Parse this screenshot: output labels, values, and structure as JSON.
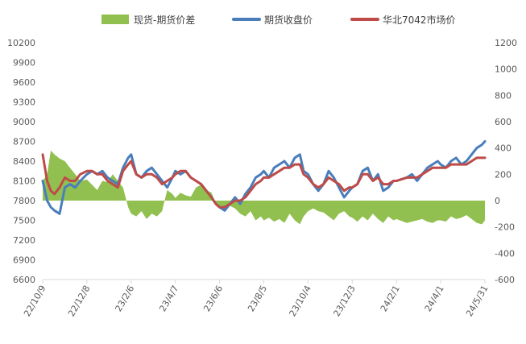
{
  "chart_data": {
    "type": "line",
    "title": "",
    "legend": {
      "placement": "top",
      "entries": [
        "现货-期货价差",
        "期货收盘价",
        "华北7042市场价"
      ]
    },
    "colors": {
      "spread": "#92C050",
      "futures": "#4A7EBB",
      "spot": "#BE4B48",
      "axis": "#D9D9D9",
      "text": "#595959"
    },
    "y_left": {
      "ticks": [
        "10200",
        "9900",
        "9600",
        "9300",
        "9000",
        "8700",
        "8400",
        "8100",
        "7800",
        "7500",
        "7200",
        "6900",
        "6600"
      ],
      "ylim": [
        6600,
        10200
      ]
    },
    "y_right": {
      "ticks": [
        "1200",
        "1000",
        "800",
        "600",
        "400",
        "200",
        "0",
        "-200",
        "-400",
        "-600"
      ],
      "ylim": [
        -600,
        1200
      ]
    },
    "x_labels": [
      "22/10/9",
      "22/12/8",
      "23/2/6",
      "23/4/7",
      "23/6/6",
      "23/8/5",
      "23/10/4",
      "23/12/3",
      "24/2/1",
      "24/4/1",
      "24/5/31"
    ],
    "x_range": [
      "2022-10-09",
      "2024-05-31"
    ],
    "grid": false,
    "series": [
      {
        "key": "futures",
        "name": "期货收盘价",
        "axis": "left",
        "dates": [
          "2022-10-09",
          "2022-10-15",
          "2022-10-20",
          "2022-10-25",
          "2022-11-01",
          "2022-11-08",
          "2022-11-15",
          "2022-11-22",
          "2022-11-29",
          "2022-12-08",
          "2022-12-15",
          "2022-12-22",
          "2022-12-29",
          "2023-01-05",
          "2023-01-12",
          "2023-01-19",
          "2023-01-26",
          "2023-02-02",
          "2023-02-06",
          "2023-02-13",
          "2023-02-20",
          "2023-02-27",
          "2023-03-06",
          "2023-03-13",
          "2023-03-20",
          "2023-03-27",
          "2023-04-03",
          "2023-04-07",
          "2023-04-14",
          "2023-04-21",
          "2023-04-28",
          "2023-05-05",
          "2023-05-12",
          "2023-05-19",
          "2023-05-26",
          "2023-06-01",
          "2023-06-06",
          "2023-06-13",
          "2023-06-20",
          "2023-06-27",
          "2023-07-04",
          "2023-07-11",
          "2023-07-18",
          "2023-07-25",
          "2023-08-01",
          "2023-08-05",
          "2023-08-12",
          "2023-08-19",
          "2023-08-26",
          "2023-09-02",
          "2023-09-09",
          "2023-09-16",
          "2023-09-23",
          "2023-09-28",
          "2023-10-04",
          "2023-10-11",
          "2023-10-18",
          "2023-10-25",
          "2023-11-01",
          "2023-11-08",
          "2023-11-15",
          "2023-11-22",
          "2023-11-29",
          "2023-12-03",
          "2023-12-10",
          "2023-12-17",
          "2023-12-24",
          "2023-12-31",
          "2024-01-07",
          "2024-01-14",
          "2024-01-21",
          "2024-01-28",
          "2024-02-01",
          "2024-02-15",
          "2024-02-22",
          "2024-02-29",
          "2024-03-07",
          "2024-03-14",
          "2024-03-21",
          "2024-03-28",
          "2024-04-01",
          "2024-04-08",
          "2024-04-15",
          "2024-04-22",
          "2024-04-29",
          "2024-05-06",
          "2024-05-13",
          "2024-05-20",
          "2024-05-27",
          "2024-05-31"
        ],
        "values": [
          8100,
          7800,
          7700,
          7650,
          7600,
          8000,
          8050,
          8000,
          8100,
          8200,
          8250,
          8200,
          8250,
          8150,
          8100,
          8050,
          8300,
          8450,
          8500,
          8200,
          8150,
          8250,
          8300,
          8200,
          8100,
          8000,
          8150,
          8250,
          8200,
          8250,
          8150,
          8100,
          8050,
          7950,
          7850,
          7750,
          7700,
          7650,
          7750,
          7850,
          7750,
          7900,
          8000,
          8150,
          8200,
          8250,
          8150,
          8300,
          8350,
          8400,
          8300,
          8450,
          8500,
          8250,
          8200,
          8050,
          7950,
          8050,
          8250,
          8150,
          8000,
          7850,
          7950,
          8000,
          8050,
          8250,
          8300,
          8100,
          8200,
          7950,
          8000,
          8100,
          8100,
          8150,
          8200,
          8100,
          8200,
          8300,
          8350,
          8400,
          8350,
          8300,
          8400,
          8450,
          8350,
          8400,
          8500,
          8600,
          8650,
          8700
        ]
      },
      {
        "key": "spot",
        "name": "华北7042市场价",
        "axis": "left",
        "dates": [
          "2022-10-09",
          "2022-10-15",
          "2022-10-20",
          "2022-10-25",
          "2022-11-01",
          "2022-11-08",
          "2022-11-15",
          "2022-11-22",
          "2022-11-29",
          "2022-12-08",
          "2022-12-15",
          "2022-12-22",
          "2022-12-29",
          "2023-01-05",
          "2023-01-12",
          "2023-01-19",
          "2023-01-26",
          "2023-02-02",
          "2023-02-06",
          "2023-02-13",
          "2023-02-20",
          "2023-02-27",
          "2023-03-06",
          "2023-03-13",
          "2023-03-20",
          "2023-03-27",
          "2023-04-03",
          "2023-04-07",
          "2023-04-14",
          "2023-04-21",
          "2023-04-28",
          "2023-05-05",
          "2023-05-12",
          "2023-05-19",
          "2023-05-26",
          "2023-06-01",
          "2023-06-06",
          "2023-06-13",
          "2023-06-20",
          "2023-06-27",
          "2023-07-04",
          "2023-07-11",
          "2023-07-18",
          "2023-07-25",
          "2023-08-01",
          "2023-08-05",
          "2023-08-12",
          "2023-08-19",
          "2023-08-26",
          "2023-09-02",
          "2023-09-09",
          "2023-09-16",
          "2023-09-23",
          "2023-09-28",
          "2023-10-04",
          "2023-10-11",
          "2023-10-18",
          "2023-10-25",
          "2023-11-01",
          "2023-11-08",
          "2023-11-15",
          "2023-11-22",
          "2023-11-29",
          "2023-12-03",
          "2023-12-10",
          "2023-12-17",
          "2023-12-24",
          "2023-12-31",
          "2024-01-07",
          "2024-01-14",
          "2024-01-21",
          "2024-01-28",
          "2024-02-01",
          "2024-02-15",
          "2024-02-22",
          "2024-02-29",
          "2024-03-07",
          "2024-03-14",
          "2024-03-21",
          "2024-03-28",
          "2024-04-01",
          "2024-04-08",
          "2024-04-15",
          "2024-04-22",
          "2024-04-29",
          "2024-05-06",
          "2024-05-13",
          "2024-05-20",
          "2024-05-27",
          "2024-05-31"
        ],
        "values": [
          8500,
          8100,
          7950,
          7900,
          8000,
          8150,
          8100,
          8100,
          8200,
          8250,
          8250,
          8200,
          8200,
          8100,
          8050,
          8000,
          8250,
          8350,
          8400,
          8200,
          8150,
          8200,
          8200,
          8150,
          8050,
          8100,
          8150,
          8200,
          8250,
          8250,
          8150,
          8100,
          8050,
          7950,
          7850,
          7750,
          7700,
          7700,
          7750,
          7800,
          7800,
          7850,
          7950,
          8050,
          8100,
          8150,
          8150,
          8200,
          8250,
          8300,
          8300,
          8350,
          8350,
          8200,
          8150,
          8050,
          8000,
          8050,
          8150,
          8100,
          8050,
          7950,
          8000,
          8000,
          8050,
          8200,
          8200,
          8100,
          8150,
          8050,
          8050,
          8100,
          8100,
          8150,
          8150,
          8150,
          8200,
          8250,
          8300,
          8300,
          8300,
          8300,
          8350,
          8350,
          8350,
          8350,
          8400,
          8450,
          8450,
          8450
        ]
      },
      {
        "key": "spread",
        "name": "现货-期货价差",
        "axis": "right",
        "type": "area",
        "dates": [
          "2022-10-09",
          "2022-10-15",
          "2022-10-20",
          "2022-10-25",
          "2022-11-01",
          "2022-11-08",
          "2022-11-15",
          "2022-11-22",
          "2022-11-29",
          "2022-12-08",
          "2022-12-15",
          "2022-12-22",
          "2022-12-29",
          "2023-01-05",
          "2023-01-12",
          "2023-01-19",
          "2023-01-26",
          "2023-02-02",
          "2023-02-06",
          "2023-02-13",
          "2023-02-20",
          "2023-02-27",
          "2023-03-06",
          "2023-03-13",
          "2023-03-20",
          "2023-03-27",
          "2023-04-03",
          "2023-04-07",
          "2023-04-14",
          "2023-04-21",
          "2023-04-28",
          "2023-05-05",
          "2023-05-12",
          "2023-05-19",
          "2023-05-26",
          "2023-06-01",
          "2023-06-06",
          "2023-06-13",
          "2023-06-20",
          "2023-06-27",
          "2023-07-04",
          "2023-07-11",
          "2023-07-18",
          "2023-07-25",
          "2023-08-01",
          "2023-08-05",
          "2023-08-12",
          "2023-08-19",
          "2023-08-26",
          "2023-09-02",
          "2023-09-09",
          "2023-09-16",
          "2023-09-23",
          "2023-09-28",
          "2023-10-04",
          "2023-10-11",
          "2023-10-18",
          "2023-10-25",
          "2023-11-01",
          "2023-11-08",
          "2023-11-15",
          "2023-11-22",
          "2023-11-29",
          "2023-12-03",
          "2023-12-10",
          "2023-12-17",
          "2023-12-24",
          "2023-12-31",
          "2024-01-07",
          "2024-01-14",
          "2024-01-21",
          "2024-01-28",
          "2024-02-01",
          "2024-02-15",
          "2024-02-22",
          "2024-02-29",
          "2024-03-07",
          "2024-03-14",
          "2024-03-21",
          "2024-03-28",
          "2024-04-01",
          "2024-04-08",
          "2024-04-15",
          "2024-04-22",
          "2024-04-29",
          "2024-05-06",
          "2024-05-13",
          "2024-05-20",
          "2024-05-27",
          "2024-05-31"
        ],
        "values": [
          150,
          200,
          380,
          350,
          320,
          300,
          250,
          200,
          150,
          160,
          120,
          80,
          150,
          140,
          200,
          150,
          100,
          -50,
          -100,
          -120,
          -80,
          -140,
          -100,
          -120,
          -80,
          80,
          50,
          20,
          60,
          40,
          30,
          100,
          120,
          80,
          60,
          -20,
          -60,
          -80,
          -40,
          -60,
          -100,
          -120,
          -80,
          -150,
          -120,
          -150,
          -130,
          -160,
          -140,
          -170,
          -100,
          -150,
          -180,
          -120,
          -80,
          -60,
          -80,
          -90,
          -120,
          -150,
          -100,
          -80,
          -120,
          -130,
          -160,
          -120,
          -150,
          -100,
          -140,
          -170,
          -120,
          -150,
          -140,
          -170,
          -160,
          -150,
          -140,
          -160,
          -170,
          -150,
          -150,
          -160,
          -120,
          -140,
          -130,
          -110,
          -140,
          -170,
          -180,
          -150
        ]
      }
    ]
  }
}
